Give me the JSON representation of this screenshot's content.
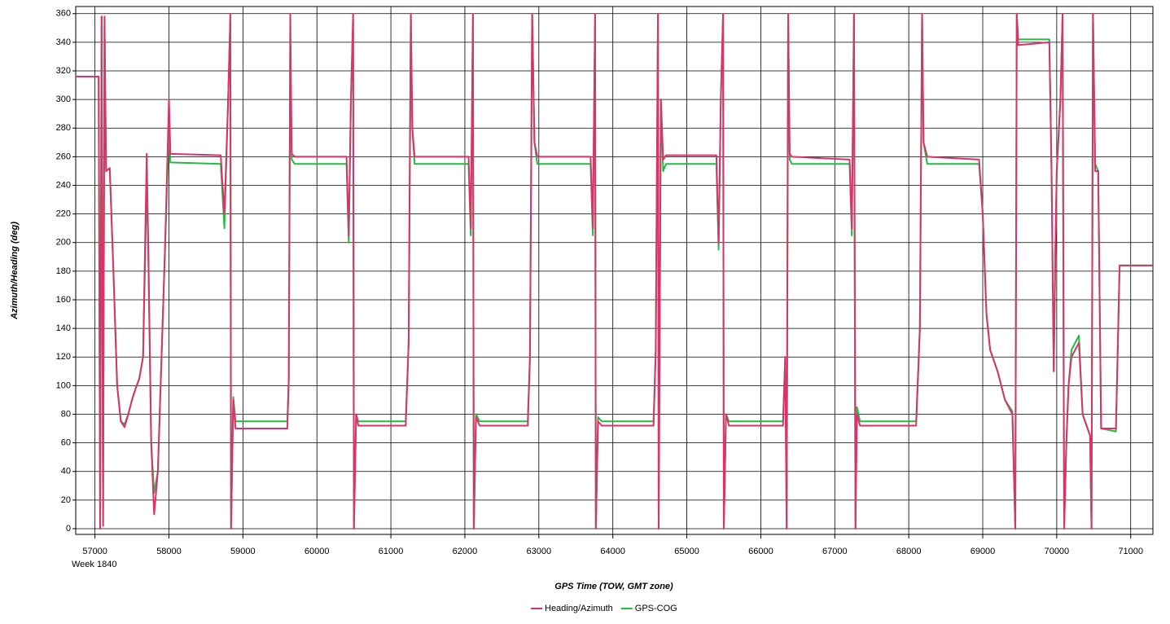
{
  "chart_data": {
    "type": "line",
    "xlabel": "GPS Time (TOW, GMT zone)",
    "ylabel": "Azimuth/Heading (deg)",
    "annotation": "Week 1840",
    "xlim": [
      56740,
      71300
    ],
    "ylim": [
      -4,
      365
    ],
    "xticks": [
      57000,
      58000,
      59000,
      60000,
      61000,
      62000,
      63000,
      64000,
      65000,
      66000,
      67000,
      68000,
      69000,
      70000,
      71000
    ],
    "yticks": [
      0,
      20,
      40,
      60,
      80,
      100,
      120,
      140,
      160,
      180,
      200,
      220,
      240,
      260,
      280,
      300,
      320,
      340,
      360
    ],
    "grid": true,
    "legend": "bottom",
    "x": [
      56740,
      57050,
      57070,
      57090,
      57110,
      57130,
      57150,
      57200,
      57250,
      57300,
      57350,
      57400,
      57450,
      57500,
      57550,
      57600,
      57650,
      57700,
      57720,
      57760,
      57800,
      57850,
      57900,
      57950,
      58000,
      58020,
      58700,
      58750,
      58800,
      58830,
      58840,
      58870,
      58900,
      59600,
      59620,
      59640,
      59660,
      59700,
      60400,
      60430,
      60460,
      60490,
      60500,
      60530,
      60560,
      61200,
      61240,
      61270,
      61290,
      61320,
      62050,
      62080,
      62110,
      62120,
      62150,
      62200,
      62850,
      62880,
      62910,
      62940,
      62980,
      63700,
      63730,
      63760,
      63770,
      63800,
      63850,
      64550,
      64580,
      64610,
      64620,
      64650,
      64680,
      64720,
      65400,
      65430,
      65460,
      65490,
      65500,
      65530,
      65570,
      66300,
      66330,
      66350,
      66370,
      66390,
      66420,
      67200,
      67230,
      67260,
      67280,
      67300,
      67340,
      68100,
      68150,
      68180,
      68200,
      68250,
      68950,
      69000,
      69050,
      69100,
      69200,
      69300,
      69400,
      69440,
      69460,
      69480,
      69900,
      69930,
      69960,
      69980,
      70000,
      70050,
      70080,
      70100,
      70130,
      70160,
      70200,
      70300,
      70350,
      70450,
      70470,
      70490,
      70520,
      70560,
      70600,
      70800,
      70850,
      71300
    ],
    "series": [
      {
        "name": "Heading/Azimuth",
        "color": "#d9336a",
        "values": [
          316,
          316,
          0,
          358,
          2,
          358,
          250,
          252,
          180,
          100,
          75,
          71,
          80,
          90,
          98,
          105,
          120,
          262,
          200,
          60,
          10,
          40,
          120,
          200,
          300,
          262,
          261,
          220,
          300,
          360,
          0,
          90,
          70,
          70,
          105,
          360,
          262,
          260,
          260,
          205,
          300,
          360,
          0,
          80,
          72,
          72,
          130,
          360,
          280,
          260,
          260,
          210,
          360,
          0,
          78,
          72,
          72,
          120,
          360,
          270,
          260,
          260,
          210,
          360,
          0,
          75,
          72,
          72,
          125,
          360,
          0,
          300,
          258,
          261,
          261,
          200,
          300,
          360,
          0,
          80,
          72,
          72,
          120,
          0,
          360,
          262,
          260,
          258,
          210,
          360,
          0,
          80,
          72,
          72,
          140,
          360,
          270,
          260,
          258,
          220,
          150,
          125,
          110,
          90,
          80,
          0,
          360,
          338,
          340,
          250,
          110,
          190,
          250,
          300,
          360,
          0,
          60,
          100,
          120,
          130,
          80,
          65,
          0,
          360,
          250,
          250,
          70,
          70,
          184,
          184
        ]
      },
      {
        "name": "GPS-COG",
        "color": "#22bb44",
        "values": [
          316,
          316,
          0,
          358,
          2,
          350,
          250,
          252,
          180,
          100,
          75,
          73,
          80,
          90,
          98,
          105,
          120,
          240,
          200,
          60,
          25,
          40,
          120,
          200,
          280,
          256,
          255,
          210,
          300,
          355,
          0,
          92,
          75,
          75,
          105,
          335,
          258,
          255,
          255,
          200,
          300,
          355,
          0,
          80,
          75,
          75,
          130,
          360,
          280,
          255,
          255,
          205,
          360,
          0,
          80,
          75,
          75,
          120,
          360,
          270,
          255,
          255,
          205,
          360,
          0,
          78,
          75,
          75,
          125,
          360,
          0,
          300,
          250,
          255,
          255,
          195,
          300,
          360,
          0,
          80,
          75,
          75,
          120,
          0,
          360,
          258,
          255,
          255,
          205,
          360,
          0,
          85,
          75,
          75,
          140,
          360,
          270,
          255,
          255,
          220,
          150,
          125,
          110,
          90,
          82,
          0,
          360,
          342,
          342,
          250,
          110,
          190,
          250,
          300,
          360,
          0,
          60,
          100,
          125,
          135,
          80,
          65,
          0,
          360,
          255,
          250,
          70,
          68,
          184,
          184
        ]
      }
    ]
  }
}
